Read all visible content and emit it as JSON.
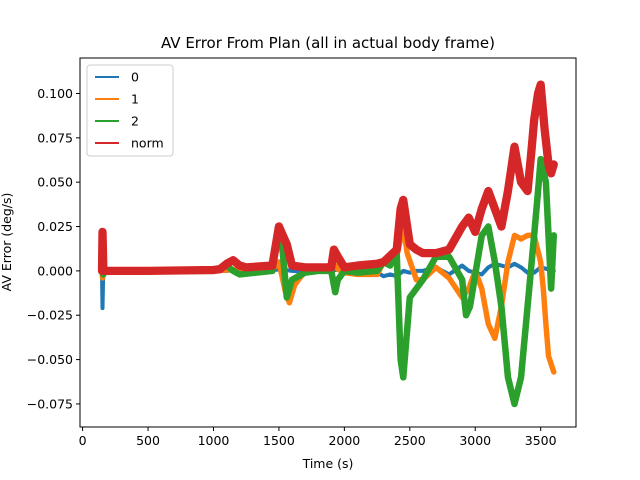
{
  "chart_data": {
    "type": "line",
    "title": "AV Error From Plan (all in actual body frame)",
    "xlabel": "Time (s)",
    "ylabel": "AV Error (deg/s)",
    "xlim": [
      -20,
      3770
    ],
    "ylim": [
      -0.088,
      0.12
    ],
    "xticks": [
      0,
      500,
      1000,
      1500,
      2000,
      2500,
      3000,
      3500
    ],
    "yticks": [
      -0.075,
      -0.05,
      -0.025,
      0.0,
      0.025,
      0.05,
      0.075,
      0.1
    ],
    "ytick_labels": [
      "−0.075",
      "−0.050",
      "−0.025",
      "0.000",
      "0.025",
      "0.050",
      "0.075",
      "0.100"
    ],
    "legend_position": "upper-left",
    "grid": false,
    "series": [
      {
        "name": "0",
        "color": "#1f77b4",
        "band": 0.0008,
        "x": [
          148,
          152,
          158,
          165,
          200,
          500,
          1000,
          1050,
          1100,
          1200,
          1450,
          1500,
          1550,
          1600,
          1700,
          1900,
          1950,
          2000,
          2100,
          2250,
          2300,
          2350,
          2400,
          2450,
          2500,
          2550,
          2600,
          2700,
          2800,
          2900,
          2950,
          3000,
          3050,
          3100,
          3150,
          3200,
          3250,
          3300,
          3350,
          3400,
          3450,
          3500,
          3550,
          3580,
          3600
        ],
        "y": [
          0.0,
          -0.021,
          0.003,
          0.0,
          0.0,
          0.0,
          0.0,
          0.0,
          0.0,
          0.0005,
          0.0005,
          0.0008,
          0.0005,
          0.0,
          -0.0005,
          0.0,
          0.0008,
          0.0,
          -0.0005,
          -0.001,
          -0.003,
          -0.002,
          -0.003,
          0.0,
          -0.001,
          0.0,
          0.0,
          0.002,
          -0.002,
          0.003,
          0.0,
          -0.001,
          -0.002,
          0.002,
          0.004,
          0.003,
          0.002,
          0.004,
          0.002,
          -0.001,
          -0.001,
          0.002,
          0.001,
          0.0,
          0.0
        ]
      },
      {
        "name": "1",
        "color": "#ff7f0e",
        "band": 0.0012,
        "x": [
          148,
          152,
          158,
          170,
          500,
          1000,
          1100,
          1200,
          1450,
          1500,
          1550,
          1580,
          1620,
          1700,
          1900,
          1920,
          1950,
          2000,
          2100,
          2250,
          2300,
          2400,
          2450,
          2480,
          2550,
          2600,
          2700,
          2800,
          2900,
          2950,
          3000,
          3050,
          3100,
          3150,
          3200,
          3250,
          3300,
          3350,
          3400,
          3450,
          3500,
          3520,
          3540,
          3560,
          3600
        ],
        "y": [
          0.0,
          -0.004,
          0.002,
          0.0,
          0.0,
          0.0,
          0.0005,
          0.001,
          0.0008,
          0.005,
          -0.012,
          -0.018,
          -0.008,
          0.0,
          0.0,
          0.004,
          0.001,
          -0.001,
          -0.002,
          -0.002,
          0.005,
          0.008,
          0.025,
          0.01,
          -0.005,
          -0.005,
          0.002,
          -0.004,
          -0.015,
          -0.01,
          0.0,
          -0.01,
          -0.03,
          -0.038,
          -0.02,
          0.005,
          0.02,
          0.018,
          0.02,
          0.02,
          0.005,
          -0.01,
          -0.03,
          -0.048,
          -0.057
        ]
      },
      {
        "name": "2",
        "color": "#2ca02c",
        "band": 0.0015,
        "x": [
          148,
          152,
          158,
          170,
          500,
          1000,
          1100,
          1150,
          1200,
          1450,
          1500,
          1530,
          1560,
          1600,
          1700,
          1800,
          1900,
          1930,
          1950,
          2000,
          2100,
          2250,
          2300,
          2350,
          2400,
          2430,
          2450,
          2500,
          2600,
          2700,
          2800,
          2900,
          2930,
          2960,
          3000,
          3050,
          3100,
          3150,
          3200,
          3250,
          3300,
          3350,
          3400,
          3450,
          3480,
          3500,
          3540,
          3560,
          3580,
          3600
        ],
        "y": [
          0.0,
          0.005,
          -0.002,
          0.0,
          0.0,
          0.0,
          0.003,
          0.0,
          -0.002,
          0.0,
          0.025,
          0.01,
          -0.015,
          -0.005,
          -0.001,
          0.0,
          0.0,
          -0.012,
          -0.005,
          0.0,
          -0.001,
          0.0,
          0.005,
          0.003,
          0.01,
          -0.05,
          -0.06,
          -0.015,
          -0.005,
          0.008,
          0.008,
          -0.005,
          -0.025,
          -0.02,
          -0.002,
          0.02,
          0.025,
          0.005,
          -0.02,
          -0.06,
          -0.075,
          -0.06,
          -0.02,
          0.02,
          0.045,
          0.063,
          0.05,
          0.02,
          -0.01,
          0.02
        ]
      },
      {
        "name": "norm",
        "color": "#d62728",
        "band": 0.002,
        "x": [
          148,
          152,
          158,
          170,
          500,
          1000,
          1050,
          1100,
          1150,
          1200,
          1250,
          1450,
          1500,
          1530,
          1560,
          1600,
          1700,
          1900,
          1920,
          1950,
          2000,
          2100,
          2250,
          2300,
          2400,
          2430,
          2450,
          2500,
          2550,
          2600,
          2700,
          2800,
          2900,
          2950,
          3000,
          3050,
          3100,
          3150,
          3200,
          3250,
          3300,
          3350,
          3400,
          3430,
          3450,
          3480,
          3500,
          3530,
          3560,
          3580,
          3600
        ],
        "y": [
          0.0,
          0.022,
          0.002,
          0.0,
          0.0,
          0.0005,
          0.001,
          0.004,
          0.006,
          0.003,
          0.002,
          0.003,
          0.025,
          0.02,
          0.015,
          0.003,
          0.002,
          0.002,
          0.012,
          0.008,
          0.002,
          0.003,
          0.004,
          0.005,
          0.012,
          0.035,
          0.04,
          0.015,
          0.012,
          0.01,
          0.01,
          0.012,
          0.025,
          0.03,
          0.022,
          0.035,
          0.045,
          0.035,
          0.025,
          0.045,
          0.07,
          0.05,
          0.045,
          0.068,
          0.085,
          0.1,
          0.105,
          0.08,
          0.06,
          0.055,
          0.06
        ]
      }
    ]
  }
}
